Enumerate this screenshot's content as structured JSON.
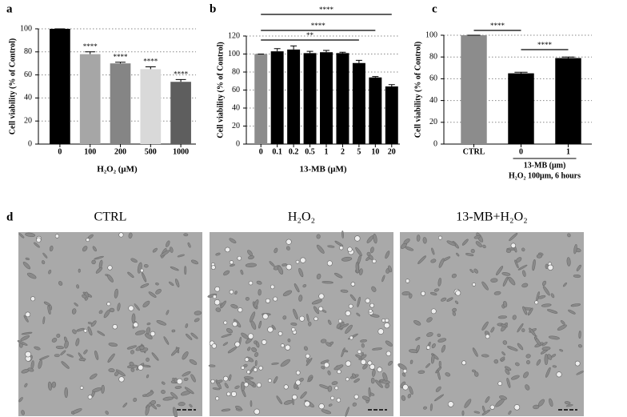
{
  "chart_data": [
    {
      "type": "bar",
      "panel_label": "a",
      "y_label": "Cell viability (% of Control)",
      "x_label": "H₂O₂ (μM)",
      "categories": [
        "0",
        "100",
        "200",
        "500",
        "1000"
      ],
      "values": [
        100,
        78,
        70,
        65,
        54
      ],
      "errors": [
        0,
        2,
        1,
        2,
        2
      ],
      "colors": [
        "#000000",
        "#a6a6a6",
        "#858585",
        "#d9d9d9",
        "#5e5e5e"
      ],
      "annotations": [
        null,
        "****",
        "****",
        "****",
        "****"
      ],
      "ylim": [
        0,
        100
      ],
      "yticks": [
        0,
        20,
        40,
        60,
        80,
        100
      ],
      "grid": true
    },
    {
      "type": "bar",
      "panel_label": "b",
      "y_label": "Cell viability (% of Control)",
      "x_label": "13-MB (μM)",
      "categories": [
        "0",
        "0.1",
        "0.2",
        "0.5",
        "1",
        "2",
        "5",
        "10",
        "20"
      ],
      "values": [
        100,
        103,
        105,
        101,
        102,
        101,
        90,
        74,
        64
      ],
      "errors": [
        0,
        3,
        4,
        2,
        2,
        1,
        3,
        1,
        2
      ],
      "colors": [
        "#8c8c8c",
        "#000000",
        "#000000",
        "#000000",
        "#000000",
        "#000000",
        "#000000",
        "#000000",
        "#000000"
      ],
      "brackets": [
        {
          "from": "0",
          "to": "20",
          "label": "****"
        },
        {
          "from": "0",
          "to": "10",
          "label": "****"
        },
        {
          "from": "0",
          "to": "5",
          "label": "**"
        }
      ],
      "ylim": [
        0,
        120
      ],
      "yticks": [
        0,
        20,
        40,
        60,
        80,
        100,
        120
      ],
      "grid": true
    },
    {
      "type": "bar",
      "panel_label": "c",
      "y_label": "Cell viability (% of Control)",
      "categories": [
        "CTRL",
        "0",
        "1"
      ],
      "values": [
        100,
        65,
        79
      ],
      "errors": [
        0,
        1,
        1
      ],
      "colors": [
        "#8c8c8c",
        "#000000",
        "#000000"
      ],
      "brackets": [
        {
          "from": "CTRL",
          "to": "0",
          "label": "****"
        },
        {
          "from": "0",
          "to": "1",
          "label": "****"
        }
      ],
      "group_label": "13-MB (μm)",
      "note": "H₂O₂ 100μm, 6 hours",
      "ylim": [
        0,
        100
      ],
      "yticks": [
        0,
        20,
        40,
        60,
        80,
        100
      ],
      "grid": true
    }
  ],
  "panel_d": {
    "panel_label": "d",
    "titles": [
      "CTRL",
      "H₂O₂",
      "13-MB+H₂O₂"
    ]
  }
}
